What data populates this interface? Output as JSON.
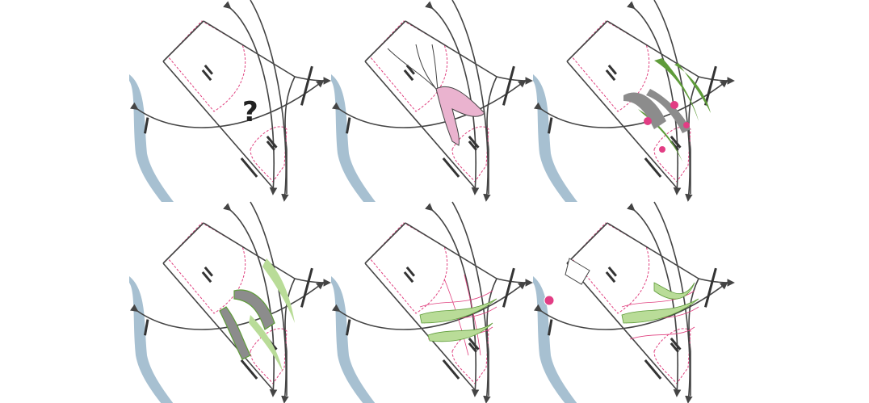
{
  "colors": {
    "background": "#ffffff",
    "river": "#a7c0d1",
    "outline": "#444444",
    "dashed": "#e0417f",
    "pink_fill": "#eab3cf",
    "green_dark": "#5f9c3a",
    "green_light": "#b9dc98",
    "gray_path": "#8c8c8c",
    "node": "#e23d84"
  },
  "panels": [
    {
      "id": "p1",
      "mark": "?"
    },
    {
      "id": "p2",
      "mark": ""
    },
    {
      "id": "p3",
      "mark": ""
    },
    {
      "id": "p4",
      "mark": ""
    },
    {
      "id": "p5",
      "mark": ""
    },
    {
      "id": "p6",
      "mark": ""
    }
  ]
}
